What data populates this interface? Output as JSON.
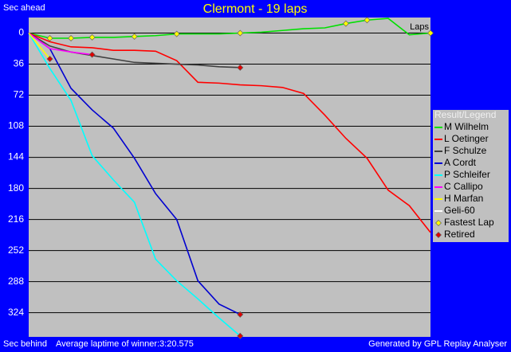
{
  "chart_data": {
    "type": "line",
    "title": "Clermont - 19 laps",
    "y_label_top": "Sec ahead",
    "y_label_bottom": "Sec behind",
    "x_label": "Laps",
    "footer_left": "Average laptime of winner:3:20.575",
    "footer_right": "Generated by GPL Replay Analyser",
    "legend_title": "Result/Legend",
    "fastest_lap_label": "Fastest Lap",
    "retired_label": "Retired",
    "x": [
      0,
      1,
      2,
      3,
      4,
      5,
      6,
      7,
      8,
      9,
      10,
      11,
      12,
      13,
      14,
      15,
      16,
      17,
      18,
      19
    ],
    "xlim": [
      0,
      19
    ],
    "ylim": [
      352,
      -18
    ],
    "yticks": [
      0,
      36,
      72,
      108,
      144,
      180,
      216,
      252,
      288,
      324
    ],
    "grid": true,
    "fastest_laps": [
      1,
      2,
      3,
      5,
      7,
      10,
      15,
      16,
      19
    ],
    "series": [
      {
        "name": "M Wilhelm",
        "color": "#00e000",
        "values": [
          0,
          6,
          6,
          5,
          5,
          4,
          3,
          1,
          1,
          1,
          0,
          -1,
          -3,
          -5,
          -6,
          -11,
          -15,
          -17,
          2,
          0
        ]
      },
      {
        "name": "L Oetinger",
        "color": "#ff0000",
        "values": [
          0,
          10,
          16,
          17,
          20,
          20,
          21,
          32,
          57,
          58,
          60,
          61,
          63,
          70,
          95,
          122,
          145,
          182,
          200,
          231
        ]
      },
      {
        "name": "F Schulze",
        "color": "#404040",
        "retired": true,
        "values": [
          0,
          15,
          22,
          26,
          30,
          34,
          35,
          36,
          37,
          39,
          40,
          null,
          null,
          null,
          null,
          null,
          null,
          null,
          null,
          null
        ]
      },
      {
        "name": "A Cordt",
        "color": "#0000d0",
        "retired": true,
        "values": [
          0,
          18,
          64,
          89,
          110,
          145,
          186,
          216,
          287,
          314,
          326,
          null,
          null,
          null,
          null,
          null,
          null,
          null,
          null,
          null
        ]
      },
      {
        "name": "P Schleifer",
        "color": "#00ffff",
        "retired": true,
        "values": [
          0,
          41,
          78,
          142,
          170,
          196,
          262,
          287,
          308,
          330,
          351,
          null,
          null,
          null,
          null,
          null,
          null,
          null,
          null,
          null
        ]
      },
      {
        "name": "C Callipo",
        "color": "#ff00ff",
        "retired": true,
        "values": [
          0,
          18,
          22,
          25,
          null,
          null,
          null,
          null,
          null,
          null,
          null,
          null,
          null,
          null,
          null,
          null,
          null,
          null,
          null,
          null
        ]
      },
      {
        "name": "H Marfan",
        "color": "#ffff00",
        "retired": true,
        "values": [
          0,
          30,
          null,
          null,
          null,
          null,
          null,
          null,
          null,
          null,
          null,
          null,
          null,
          null,
          null,
          null,
          null,
          null,
          null,
          null
        ]
      },
      {
        "name": "Geli-60",
        "color": "#ffffff",
        "values": [
          null,
          null,
          null,
          null,
          null,
          null,
          null,
          null,
          null,
          null,
          null,
          null,
          null,
          null,
          null,
          null,
          null,
          null,
          null,
          null
        ]
      }
    ]
  }
}
